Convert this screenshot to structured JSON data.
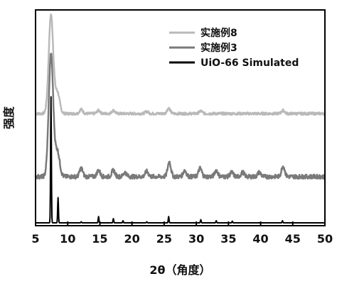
{
  "chart_data": {
    "type": "line",
    "xlabel": "2θ（角度）",
    "ylabel": "强度",
    "xlim": [
      5,
      50
    ],
    "x_ticks": [
      5,
      10,
      15,
      20,
      25,
      30,
      35,
      40,
      45,
      50
    ],
    "y_ticks_shown": false,
    "grid": false,
    "legend_position": "top-right",
    "series": [
      {
        "name": "实施例8",
        "color": "#b9b9b9",
        "offset": 0.52,
        "peaks": [
          [
            7.4,
            0.47
          ],
          [
            8.4,
            0.1
          ],
          [
            12.1,
            0.02
          ],
          [
            14.8,
            0.015
          ],
          [
            17.1,
            0.015
          ],
          [
            22.3,
            0.01
          ],
          [
            25.7,
            0.025
          ],
          [
            30.7,
            0.012
          ],
          [
            43.5,
            0.015
          ]
        ],
        "baseline_noise": 0.006
      },
      {
        "name": "实施例3",
        "color": "#7a7a7a",
        "offset": 0.22,
        "peaks": [
          [
            7.4,
            0.58
          ],
          [
            8.4,
            0.12
          ],
          [
            12.1,
            0.04
          ],
          [
            14.8,
            0.03
          ],
          [
            17.1,
            0.03
          ],
          [
            18.9,
            0.02
          ],
          [
            22.3,
            0.025
          ],
          [
            25.8,
            0.07
          ],
          [
            28.2,
            0.03
          ],
          [
            30.6,
            0.04
          ],
          [
            33.1,
            0.03
          ],
          [
            35.5,
            0.02
          ],
          [
            37.2,
            0.02
          ],
          [
            39.8,
            0.02
          ],
          [
            43.5,
            0.05
          ]
        ],
        "baseline_noise": 0.01
      },
      {
        "name": "UiO-66 Simulated",
        "color": "#000000",
        "offset": 0.0,
        "peaks": [
          [
            7.4,
            0.6
          ],
          [
            8.5,
            0.12
          ],
          [
            12.1,
            0.005
          ],
          [
            14.8,
            0.03
          ],
          [
            17.1,
            0.02
          ],
          [
            18.6,
            0.01
          ],
          [
            22.3,
            0.005
          ],
          [
            25.7,
            0.03
          ],
          [
            30.7,
            0.015
          ],
          [
            33.1,
            0.01
          ],
          [
            35.6,
            0.008
          ],
          [
            43.4,
            0.01
          ]
        ],
        "baseline_noise": 0.0
      }
    ]
  }
}
